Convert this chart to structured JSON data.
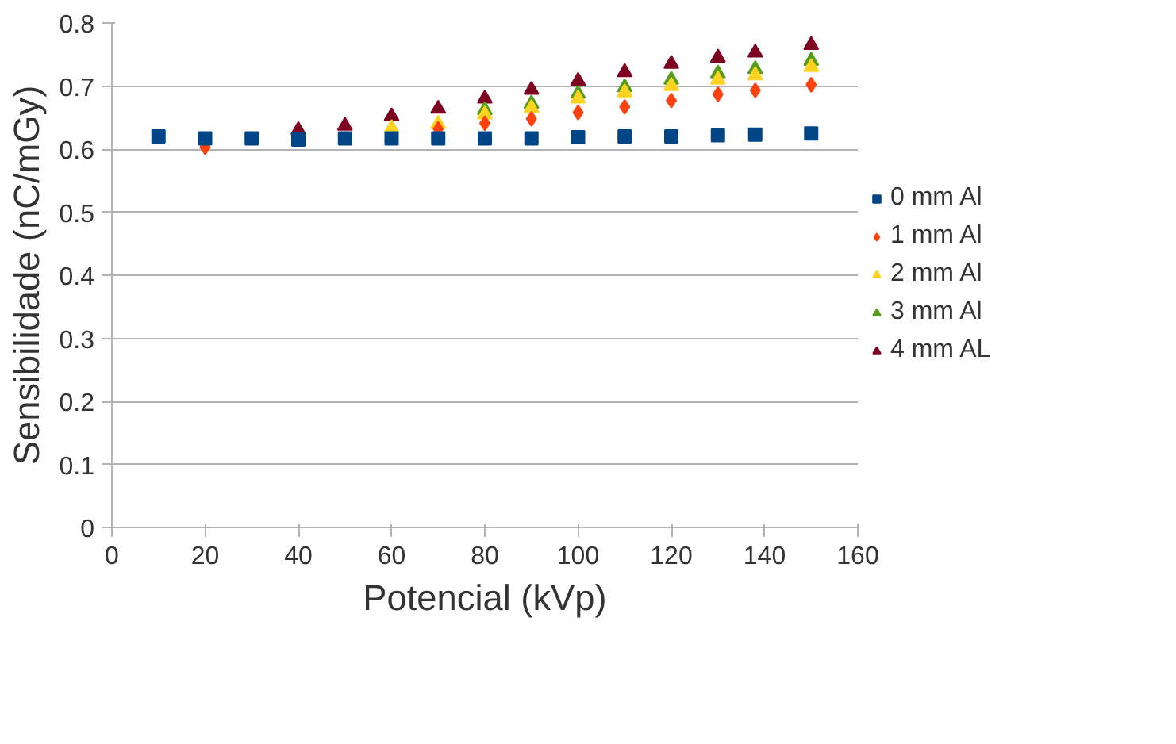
{
  "chart_data": {
    "type": "scatter",
    "xlabel": "Potencial (kVp)",
    "ylabel": "Sensibilidade (nC/mGy)",
    "x": [
      10,
      20,
      30,
      40,
      50,
      60,
      70,
      80,
      90,
      100,
      110,
      120,
      130,
      138,
      150
    ],
    "series": [
      {
        "name": "0 mm Al",
        "color": "#004586",
        "marker": "square",
        "values": [
          0.62,
          0.617,
          0.617,
          0.615,
          0.617,
          0.617,
          0.617,
          0.617,
          0.617,
          0.619,
          0.62,
          0.62,
          0.622,
          0.623,
          0.625
        ]
      },
      {
        "name": "1 mm Al",
        "color": "#ff420e",
        "marker": "diamond",
        "values": [
          null,
          0.603,
          null,
          null,
          null,
          null,
          0.632,
          0.641,
          0.648,
          0.658,
          0.667,
          0.677,
          0.687,
          0.693,
          0.702
        ]
      },
      {
        "name": "2 mm Al",
        "color": "#ffd320",
        "marker": "triangle",
        "values": [
          null,
          null,
          null,
          null,
          null,
          0.633,
          0.64,
          0.655,
          0.665,
          0.68,
          0.69,
          0.7,
          0.71,
          0.717,
          0.73
        ]
      },
      {
        "name": "3 mm Al",
        "color": "#579d1c",
        "marker": "triangle",
        "values": [
          null,
          null,
          null,
          null,
          null,
          null,
          null,
          0.662,
          0.672,
          0.688,
          0.698,
          0.71,
          0.72,
          0.727,
          0.74
        ]
      },
      {
        "name": "4 mm AL",
        "color": "#7e0021",
        "marker": "triangle",
        "values": [
          null,
          null,
          null,
          0.63,
          0.637,
          0.652,
          0.664,
          0.68,
          0.694,
          0.708,
          0.722,
          0.735,
          0.745,
          0.753,
          0.765
        ]
      }
    ],
    "xlim": [
      0,
      160
    ],
    "xticks": [
      0,
      20,
      40,
      60,
      80,
      100,
      120,
      140,
      160
    ],
    "ylim": [
      0,
      0.8
    ],
    "yticks": [
      0,
      0.1,
      0.2,
      0.3,
      0.4,
      0.5,
      0.6,
      0.7,
      0.8
    ],
    "grid": "y",
    "legend": "right"
  }
}
